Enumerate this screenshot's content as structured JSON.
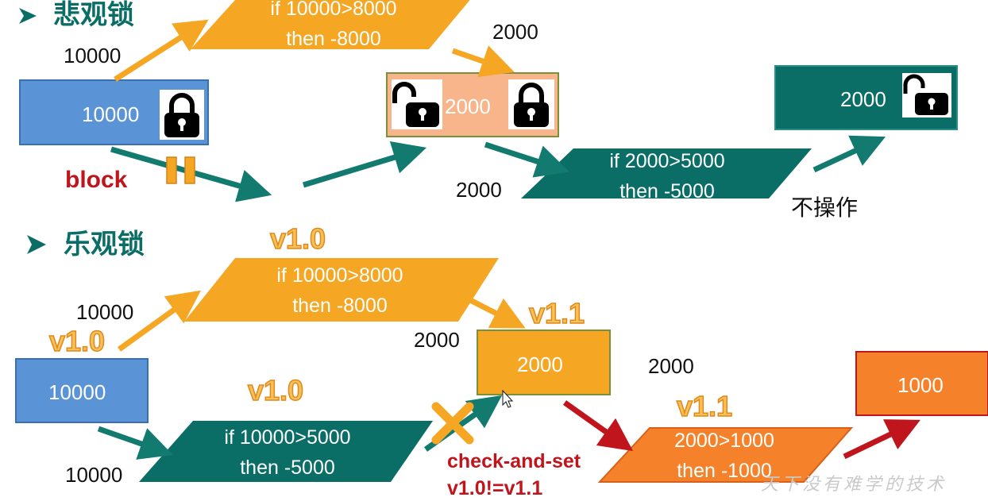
{
  "colors": {
    "teal": "#0b6e66",
    "orange": "#f5a623",
    "dark_orange": "#f5822a",
    "blue": "#5a93d6",
    "salmon": "#f8b48a",
    "red": "#c0151c",
    "arrow_teal": "#137a70"
  },
  "pessimistic": {
    "heading": "悲观锁",
    "label_10000": "10000",
    "box_start": "10000",
    "block": "block",
    "para1_line1": "if 10000>8000",
    "para1_line2": "then -8000",
    "label_2000_a": "2000",
    "box_mid": "2000",
    "label_2000_b": "2000",
    "para2_line1": "if 2000>5000",
    "para2_line2": "then -5000",
    "box_end": "2000",
    "no_op": "不操作"
  },
  "optimistic": {
    "heading": "乐观锁",
    "ver_top": "v1.0",
    "para1_line1": "if 10000>8000",
    "para1_line2": "then -8000",
    "label_10000_a": "10000",
    "ver_left": "v1.0",
    "box_start": "10000",
    "ver_mid_left": "v1.0",
    "label_10000_b": "10000",
    "para2_line1": "if 10000>5000",
    "para2_line2": "then -5000",
    "ver_box": "v1.1",
    "label_2000_a": "2000",
    "box_mid": "2000",
    "label_2000_b": "2000",
    "check_line1": "check-and-set",
    "check_line2": "v1.0!=v1.1",
    "ver_right": "v1.1",
    "para3_line1": "2000>1000",
    "para3_line2": "then -1000",
    "box_end": "1000"
  },
  "watermark": "天下没有难学的技术",
  "icons": [
    "lock-closed-icon",
    "lock-open-icon",
    "bullet-arrow-icon",
    "pause-icon",
    "cross-icon",
    "mouse-cursor-icon"
  ]
}
